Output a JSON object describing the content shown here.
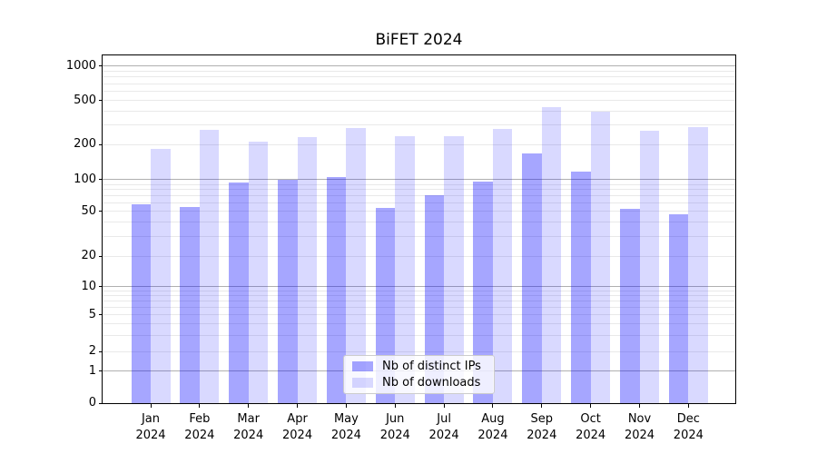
{
  "title": "BiFET 2024",
  "chart_data": {
    "type": "bar",
    "title": "BiFET 2024",
    "categories": [
      "Jan 2024",
      "Feb 2024",
      "Mar 2024",
      "Apr 2024",
      "May 2024",
      "Jun 2024",
      "Jul 2024",
      "Aug 2024",
      "Sep 2024",
      "Oct 2024",
      "Nov 2024",
      "Dec 2024"
    ],
    "series": [
      {
        "name": "Nb of distinct IPs",
        "color": "#0000FF59",
        "values": [
          58,
          55,
          93,
          99,
          105,
          54,
          71,
          95,
          167,
          117,
          53,
          47
        ]
      },
      {
        "name": "Nb of downloads",
        "color": "#0000FF26",
        "values": [
          183,
          270,
          213,
          234,
          282,
          237,
          239,
          277,
          433,
          399,
          265,
          288
        ]
      }
    ],
    "yscale": "symlog",
    "yticks": [
      0,
      1,
      2,
      5,
      10,
      20,
      50,
      100,
      200,
      500,
      1000
    ],
    "ylim": [
      0,
      1250
    ],
    "grid": "on",
    "legend_position": "lower center",
    "colors": {
      "bar_dark": "#0000FF59",
      "bar_light": "#0000FF26",
      "major_grid": "#b0b0b0",
      "minor_grid": "#e9e9e9",
      "axis": "#000000",
      "legend_border": "#cccccc"
    }
  }
}
